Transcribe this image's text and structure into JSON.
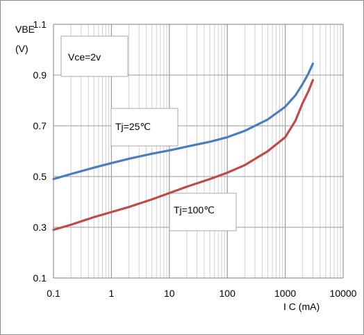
{
  "chart_data": {
    "type": "line",
    "x_scale": "log",
    "xlim": [
      0.1,
      10000
    ],
    "ylim": [
      0.1,
      1.1
    ],
    "x_ticks": [
      "0.1",
      "1",
      "10",
      "100",
      "1000",
      "10000"
    ],
    "y_ticks": [
      "0.1",
      "0.3",
      "0.5",
      "0.7",
      "0.9",
      "1.1"
    ],
    "ylabel_line1": "VBE",
    "ylabel_line2": "(V)",
    "xlabel": "I C (mA)",
    "grid": "minor log grid on x, grid on y",
    "annotations": [
      {
        "text": "Vce=2v"
      },
      {
        "text": "Tj=25℃"
      },
      {
        "text": "Tj=100℃"
      }
    ],
    "series": [
      {
        "color": "#4a7ebb",
        "x": [
          0.1,
          0.2,
          0.5,
          1,
          2,
          5,
          10,
          20,
          50,
          100,
          200,
          500,
          1000,
          1500,
          2000,
          2500,
          3000
        ],
        "y": [
          0.49,
          0.51,
          0.535,
          0.553,
          0.57,
          0.59,
          0.603,
          0.618,
          0.637,
          0.655,
          0.68,
          0.725,
          0.775,
          0.82,
          0.865,
          0.905,
          0.945
        ]
      },
      {
        "color": "#be4b48",
        "x": [
          0.1,
          0.2,
          0.5,
          1,
          2,
          5,
          10,
          20,
          50,
          100,
          200,
          500,
          1000,
          1500,
          2000,
          2500,
          3000
        ],
        "y": [
          0.29,
          0.31,
          0.34,
          0.36,
          0.38,
          0.41,
          0.435,
          0.46,
          0.49,
          0.515,
          0.545,
          0.6,
          0.655,
          0.72,
          0.79,
          0.835,
          0.88
        ]
      }
    ]
  }
}
